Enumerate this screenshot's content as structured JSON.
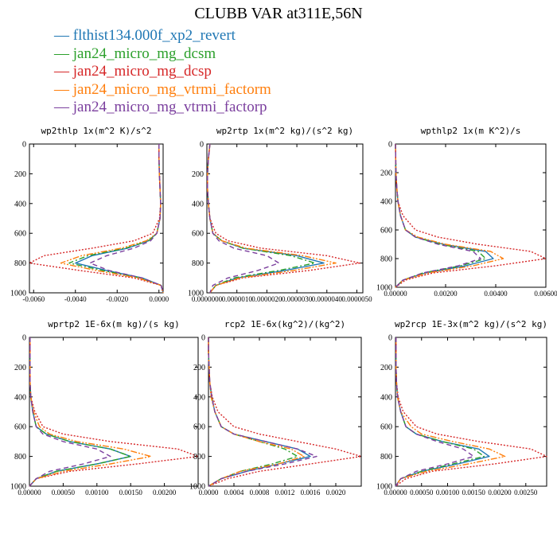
{
  "page_title": "CLUBB VAR at311E,56N",
  "legend": [
    {
      "name": "flthist134.000f_xp2_revert",
      "color": "#1f77b4",
      "dash": "none"
    },
    {
      "name": "jan24_micro_mg_dcsm",
      "color": "#2ca02c",
      "dash": "7 3 2 3"
    },
    {
      "name": "jan24_micro_mg_dcsp",
      "color": "#d62728",
      "dash": "2 2"
    },
    {
      "name": "jan24_micro_mg_vtrmi_factorm",
      "color": "#ff7f0e",
      "dash": "8 2 2 2 2 2"
    },
    {
      "name": "jan24_micro_mg_vtrmi_factorp",
      "color": "#7b3f9e",
      "dash": "6 4"
    }
  ],
  "chart_data": [
    {
      "type": "line",
      "title": "wp2thlp  1x(m^2 K)/s^2",
      "xlim": [
        -0.0062,
        0.0002
      ],
      "ylim": [
        1000,
        0
      ],
      "xticks": [
        {
          "v": -0.006,
          "label": "-0.0060"
        },
        {
          "v": -0.004,
          "label": "-0.0040"
        },
        {
          "v": -0.002,
          "label": "-0.0020"
        },
        {
          "v": 0.0,
          "label": "0.0000"
        }
      ],
      "yticks": [
        0,
        200,
        400,
        600,
        800,
        1000
      ],
      "y": [
        0,
        100,
        200,
        300,
        400,
        500,
        600,
        650,
        700,
        750,
        800,
        850,
        900,
        950,
        1000
      ],
      "series": [
        {
          "values": [
            0,
            0,
            2e-05,
            5e-05,
            8e-05,
            5e-05,
            -0.0001,
            -0.0005,
            -0.0015,
            -0.0032,
            -0.004,
            -0.0025,
            -0.0008,
            0.0001,
            0.0002
          ]
        },
        {
          "values": [
            0,
            0,
            2e-05,
            5e-05,
            8e-05,
            5e-05,
            -0.0001,
            -0.0005,
            -0.0016,
            -0.0034,
            -0.0043,
            -0.0027,
            -0.0009,
            0.0001,
            0.0002
          ]
        },
        {
          "values": [
            0,
            0,
            2e-05,
            5e-05,
            8e-05,
            3e-05,
            -0.0003,
            -0.0012,
            -0.0032,
            -0.0055,
            -0.0062,
            -0.0038,
            -0.0012,
            0.0001,
            0.0002
          ]
        },
        {
          "values": [
            0,
            0,
            2e-05,
            5e-05,
            8e-05,
            5e-05,
            -0.0001,
            -0.0006,
            -0.0018,
            -0.0037,
            -0.0047,
            -0.003,
            -0.001,
            0.0001,
            0.0002
          ]
        },
        {
          "values": [
            0,
            0,
            2e-05,
            5e-05,
            8e-05,
            5e-05,
            -0.0001,
            -0.0004,
            -0.0012,
            -0.0025,
            -0.0033,
            -0.0024,
            -0.0008,
            0.0001,
            0.0002
          ]
        }
      ]
    },
    {
      "type": "line",
      "title": "wp2rtp  1x(m^2 kg)/(s^2 kg)",
      "xlim": [
        0,
        5.2e-06
      ],
      "ylim": [
        1000,
        0
      ],
      "xticks": [
        {
          "v": 0,
          "label": "0.0000000"
        },
        {
          "v": 1e-06,
          "label": "0.0000010"
        },
        {
          "v": 2e-06,
          "label": "0.0000020"
        },
        {
          "v": 3e-06,
          "label": "0.0000030"
        },
        {
          "v": 4e-06,
          "label": "0.0000040"
        },
        {
          "v": 5e-06,
          "label": "0.0000050"
        }
      ],
      "yticks": [
        0,
        200,
        400,
        600,
        800,
        1000
      ],
      "y": [
        0,
        100,
        200,
        300,
        400,
        500,
        600,
        650,
        700,
        750,
        800,
        850,
        900,
        950,
        1000
      ],
      "series": [
        {
          "values": [
            1e-07,
            5e-08,
            2e-08,
            2e-08,
            5e-08,
            1e-07,
            2e-07,
            5e-07,
            1.2e-06,
            3e-06,
            3.9e-06,
            2.6e-06,
            1e-06,
            3e-07,
            1e-07
          ]
        },
        {
          "values": [
            1e-07,
            5e-08,
            2e-08,
            2e-08,
            5e-08,
            1e-07,
            2e-07,
            5e-07,
            1.2e-06,
            2.8e-06,
            3.6e-06,
            2.4e-06,
            9e-07,
            3e-07,
            1e-07
          ]
        },
        {
          "values": [
            1e-07,
            5e-08,
            2e-08,
            2e-08,
            5e-08,
            1e-07,
            3e-07,
            7e-07,
            1.8e-06,
            4e-06,
            5.1e-06,
            3.4e-06,
            1.2e-06,
            3e-07,
            1e-07
          ]
        },
        {
          "values": [
            1e-07,
            5e-08,
            2e-08,
            2e-08,
            5e-08,
            1e-07,
            2e-07,
            5e-07,
            1.3e-06,
            3.2e-06,
            4.3e-06,
            2.9e-06,
            1.1e-06,
            3e-07,
            1e-07
          ]
        },
        {
          "values": [
            1e-07,
            5e-08,
            2e-08,
            2e-08,
            5e-08,
            1e-07,
            2e-07,
            4e-07,
            9e-07,
            2e-06,
            2.4e-06,
            1.7e-06,
            7e-07,
            2e-07,
            1e-07
          ]
        }
      ]
    },
    {
      "type": "line",
      "title": "wpthlp2  1x(m K^2)/s",
      "xlim": [
        0,
        0.006
      ],
      "ylim": [
        1000,
        0
      ],
      "xticks": [
        {
          "v": 0,
          "label": "0.00000"
        },
        {
          "v": 0.002,
          "label": "0.00200"
        },
        {
          "v": 0.004,
          "label": "0.00400"
        },
        {
          "v": 0.006,
          "label": "0.00600"
        }
      ],
      "yticks": [
        0,
        200,
        400,
        600,
        800,
        1000
      ],
      "y": [
        0,
        100,
        200,
        300,
        400,
        500,
        600,
        650,
        700,
        750,
        800,
        850,
        900,
        950,
        1000
      ],
      "series": [
        {
          "values": [
            0,
            1e-05,
            2e-05,
            5e-05,
            0.0001,
            0.0002,
            0.0004,
            0.0008,
            0.0019,
            0.0036,
            0.0039,
            0.0028,
            0.0012,
            0.0003,
            0
          ]
        },
        {
          "values": [
            0,
            1e-05,
            2e-05,
            5e-05,
            0.0001,
            0.0002,
            0.0004,
            0.0008,
            0.0018,
            0.0033,
            0.0036,
            0.0026,
            0.0011,
            0.0003,
            0
          ]
        },
        {
          "values": [
            0,
            1e-05,
            2e-05,
            5e-05,
            0.0001,
            0.0003,
            0.0008,
            0.0017,
            0.0033,
            0.0054,
            0.006,
            0.004,
            0.0015,
            0.0004,
            0
          ]
        },
        {
          "values": [
            0,
            1e-05,
            2e-05,
            5e-05,
            0.0001,
            0.0002,
            0.0004,
            0.0009,
            0.002,
            0.0038,
            0.0043,
            0.0031,
            0.0013,
            0.0003,
            0
          ]
        },
        {
          "values": [
            0,
            1e-05,
            2e-05,
            5e-05,
            0.0001,
            0.0002,
            0.0004,
            0.0008,
            0.0017,
            0.0031,
            0.0034,
            0.0025,
            0.0011,
            0.0003,
            0
          ]
        }
      ]
    },
    {
      "type": "line",
      "title": "wprtp2  1E-6x(m kg)/(s kg)",
      "xlim": [
        0,
        0.0025
      ],
      "ylim": [
        1000,
        0
      ],
      "xticks": [
        {
          "v": 0,
          "label": "0.00000"
        },
        {
          "v": 0.0005,
          "label": "0.00050"
        },
        {
          "v": 0.001,
          "label": "0.00100"
        },
        {
          "v": 0.0015,
          "label": "0.00150"
        },
        {
          "v": 0.002,
          "label": "0.00200"
        }
      ],
      "yticks": [
        0,
        200,
        400,
        600,
        800,
        1000
      ],
      "y": [
        0,
        100,
        200,
        300,
        400,
        500,
        600,
        650,
        700,
        750,
        800,
        850,
        900,
        950,
        1000
      ],
      "series": [
        {
          "values": [
            1e-05,
            1e-05,
            1e-05,
            1e-05,
            2e-05,
            5e-05,
            0.0001,
            0.00025,
            0.0006,
            0.0012,
            0.0015,
            0.001,
            0.0004,
            0.0001,
            0
          ]
        },
        {
          "values": [
            1e-05,
            1e-05,
            1e-05,
            1e-05,
            2e-05,
            5e-05,
            0.0001,
            0.00025,
            0.0006,
            0.0012,
            0.0015,
            0.001,
            0.0004,
            0.0001,
            0
          ]
        },
        {
          "values": [
            1e-05,
            1e-05,
            1e-05,
            1e-05,
            2e-05,
            8e-05,
            0.0002,
            0.0005,
            0.0012,
            0.0022,
            0.0025,
            0.0016,
            0.0006,
            0.0001,
            0
          ]
        },
        {
          "values": [
            1e-05,
            1e-05,
            1e-05,
            1e-05,
            2e-05,
            6e-05,
            0.00015,
            0.0003,
            0.0007,
            0.0014,
            0.0018,
            0.0012,
            0.0005,
            0.0001,
            0
          ]
        },
        {
          "values": [
            1e-05,
            1e-05,
            1e-05,
            1e-05,
            2e-05,
            5e-05,
            0.0001,
            0.0002,
            0.0005,
            0.001,
            0.0012,
            0.0008,
            0.0003,
            0.0001,
            0
          ]
        }
      ]
    },
    {
      "type": "line",
      "title": "rcp2  1E-6x(kg^2)/(kg^2)",
      "xlim": [
        0,
        0.0024
      ],
      "ylim": [
        1000,
        0
      ],
      "xticks": [
        {
          "v": 0,
          "label": "0.0000"
        },
        {
          "v": 0.0004,
          "label": "0.0004"
        },
        {
          "v": 0.0008,
          "label": "0.0008"
        },
        {
          "v": 0.0012,
          "label": "0.0012"
        },
        {
          "v": 0.0016,
          "label": "0.0016"
        },
        {
          "v": 0.002,
          "label": "0.0020"
        }
      ],
      "yticks": [
        0,
        200,
        400,
        600,
        800,
        1000
      ],
      "y": [
        0,
        100,
        200,
        300,
        400,
        500,
        600,
        650,
        700,
        750,
        800,
        850,
        900,
        950,
        1000
      ],
      "series": [
        {
          "values": [
            0,
            0,
            1e-05,
            2e-05,
            5e-05,
            0.0001,
            0.0002,
            0.0004,
            0.0009,
            0.0014,
            0.0016,
            0.0011,
            0.0006,
            0.0002,
            0
          ]
        },
        {
          "values": [
            0,
            0,
            1e-05,
            2e-05,
            5e-05,
            0.0001,
            0.0002,
            0.0004,
            0.0008,
            0.0012,
            0.0014,
            0.001,
            0.0005,
            0.0002,
            0
          ]
        },
        {
          "values": [
            0,
            0,
            1e-05,
            2e-05,
            6e-05,
            0.00015,
            0.0004,
            0.0008,
            0.0014,
            0.002,
            0.0024,
            0.0016,
            0.0008,
            0.0003,
            0
          ]
        },
        {
          "values": [
            0,
            0,
            1e-05,
            2e-05,
            4e-05,
            0.0001,
            0.0002,
            0.0004,
            0.0008,
            0.0013,
            0.0015,
            0.0011,
            0.0005,
            0.0002,
            0
          ]
        },
        {
          "values": [
            0,
            0,
            1e-05,
            2e-05,
            5e-05,
            0.0001,
            0.0002,
            0.0004,
            0.0009,
            0.0014,
            0.0017,
            0.0012,
            0.0006,
            0.0002,
            0
          ]
        }
      ]
    },
    {
      "type": "line",
      "title": "wp2rcp  1E-3x(m^2 kg)/(s^2 kg)",
      "xlim": [
        0,
        0.0029
      ],
      "ylim": [
        1000,
        0
      ],
      "xticks": [
        {
          "v": 0,
          "label": "0.00000"
        },
        {
          "v": 0.0005,
          "label": "0.00050"
        },
        {
          "v": 0.001,
          "label": "0.00100"
        },
        {
          "v": 0.0015,
          "label": "0.00150"
        },
        {
          "v": 0.002,
          "label": "0.00200"
        },
        {
          "v": 0.0025,
          "label": "0.00250"
        }
      ],
      "yticks": [
        0,
        200,
        400,
        600,
        800,
        1000
      ],
      "y": [
        0,
        100,
        200,
        300,
        400,
        500,
        600,
        650,
        700,
        750,
        800,
        850,
        900,
        950,
        1000
      ],
      "series": [
        {
          "values": [
            1e-05,
            1e-05,
            1e-05,
            2e-05,
            4e-05,
            0.0001,
            0.0002,
            0.0004,
            0.0009,
            0.0016,
            0.0018,
            0.0012,
            0.0005,
            0.0001,
            0
          ]
        },
        {
          "values": [
            1e-05,
            1e-05,
            1e-05,
            2e-05,
            4e-05,
            0.0001,
            0.0002,
            0.0004,
            0.0009,
            0.0015,
            0.0017,
            0.0011,
            0.0005,
            0.0001,
            0
          ]
        },
        {
          "values": [
            1e-05,
            1e-05,
            1e-05,
            2e-05,
            5e-05,
            0.00015,
            0.0004,
            0.0008,
            0.0016,
            0.0026,
            0.0029,
            0.0019,
            0.0007,
            0.0002,
            0
          ]
        },
        {
          "values": [
            1e-05,
            1e-05,
            1e-05,
            2e-05,
            4e-05,
            0.0001,
            0.0003,
            0.0005,
            0.0011,
            0.0018,
            0.0021,
            0.0014,
            0.0006,
            0.0001,
            0
          ]
        },
        {
          "values": [
            1e-05,
            1e-05,
            1e-05,
            2e-05,
            4e-05,
            0.0001,
            0.0002,
            0.0004,
            0.0008,
            0.0013,
            0.0015,
            0.001,
            0.0004,
            0.0001,
            0
          ]
        }
      ]
    }
  ]
}
